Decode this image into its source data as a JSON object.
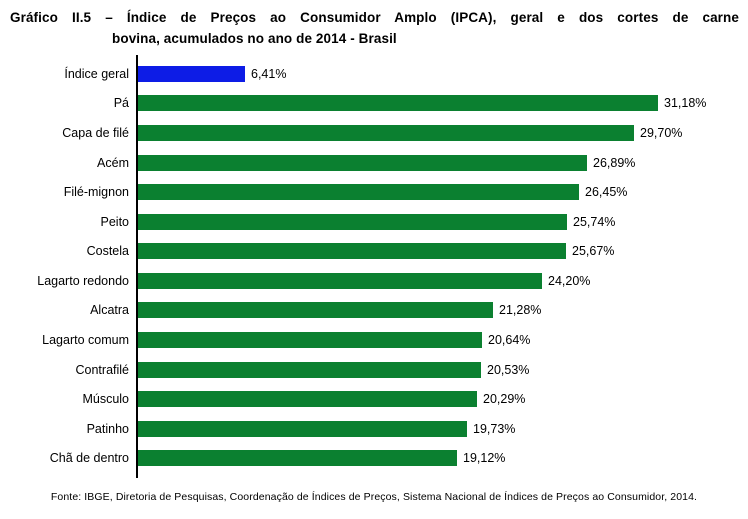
{
  "header": {
    "title_line1": "Gráfico II.5 – Índice de Preços ao Consumidor Amplo (IPCA), geral e dos cortes de carne",
    "title_line2": "bovina, acumulados no ano de 2014 - Brasil"
  },
  "source": "Fonte: IBGE, Diretoria de Pesquisas, Coordenação de Índices de Preços, Sistema Nacional de Índices de Preços ao Consumidor, 2014.",
  "chart_data": {
    "type": "bar",
    "orientation": "horizontal",
    "title": "Gráfico II.5 – Índice de Preços ao Consumidor Amplo (IPCA), geral e dos cortes de carne bovina, acumulados no ano de 2014 - Brasil",
    "categories": [
      "Índice geral",
      "Pá",
      "Capa de filé",
      "Acém",
      "Filé-mignon",
      "Peito",
      "Costela",
      "Lagarto redondo",
      "Alcatra",
      "Lagarto comum",
      "Contrafilé",
      "Músculo",
      "Patinho",
      "Chã de dentro"
    ],
    "values": [
      6.41,
      31.18,
      29.7,
      26.89,
      26.45,
      25.74,
      25.67,
      24.2,
      21.28,
      20.64,
      20.53,
      20.29,
      19.73,
      19.12
    ],
    "value_labels": [
      "6,41%",
      "31,18%",
      "29,70%",
      "26,89%",
      "26,45%",
      "25,74%",
      "25,67%",
      "24,20%",
      "21,28%",
      "20,64%",
      "20,53%",
      "20,29%",
      "19,73%",
      "19,12%"
    ],
    "xlim": [
      0,
      35
    ],
    "grid": false,
    "legend": false,
    "colors": {
      "highlight": "#0d1ce6",
      "default": "#0b8030"
    },
    "highlight_index": 0,
    "xlabel": "",
    "ylabel": ""
  }
}
